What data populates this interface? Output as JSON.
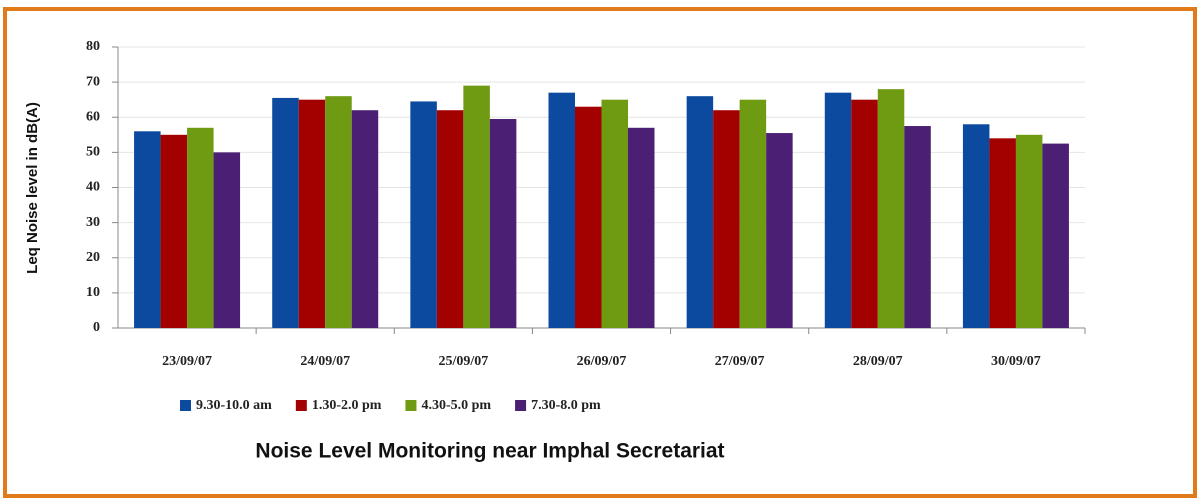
{
  "chart_data": {
    "type": "bar",
    "title": "Noise Level Monitoring near Imphal Secretariat",
    "y_label": "Leq Noise level in dB(A)",
    "categories": [
      "23/09/07",
      "24/09/07",
      "25/09/07",
      "26/09/07",
      "27/09/07",
      "28/09/07",
      "30/09/07"
    ],
    "series": [
      {
        "name": "9.30-10.0 am",
        "color": "#0b4a9e",
        "values": [
          56,
          65.5,
          64.5,
          67,
          66,
          67,
          58
        ]
      },
      {
        "name": "1.30-2.0 pm",
        "color": "#a30000",
        "values": [
          55,
          65,
          62,
          63,
          62,
          65,
          54
        ]
      },
      {
        "name": "4.30-5.0 pm",
        "color": "#6e9b12",
        "values": [
          57,
          66,
          69,
          65,
          65,
          68,
          55
        ]
      },
      {
        "name": "7.30-8.0 pm",
        "color": "#4b1f73",
        "values": [
          50,
          62,
          59.5,
          57,
          55.5,
          57.5,
          52.5
        ]
      }
    ],
    "ylim": [
      0,
      80
    ],
    "yticks": [
      0,
      10,
      20,
      30,
      40,
      50,
      60,
      70,
      80
    ],
    "grid": true,
    "legend": "bottom"
  }
}
